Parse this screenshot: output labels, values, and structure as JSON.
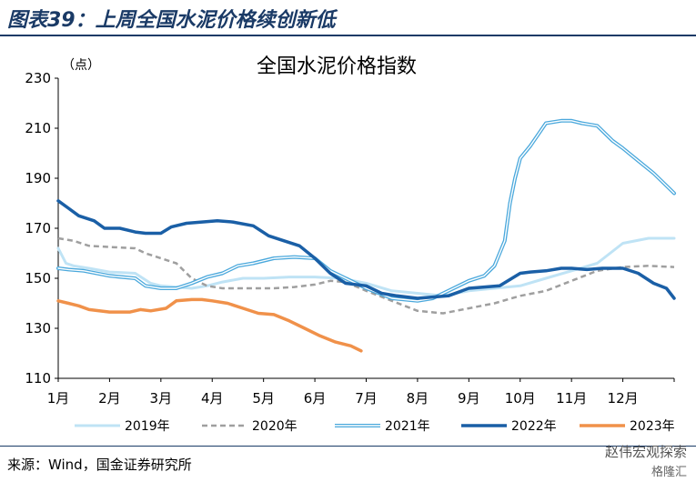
{
  "header": {
    "figure_title": "图表39：上周全国水泥价格续创新低"
  },
  "footer": {
    "source": "来源：Wind，国金证券研究所",
    "watermark": "赵伟宏观探索",
    "watermark2": "格隆汇"
  },
  "chart_data": {
    "type": "line",
    "title": "全国水泥价格指数",
    "unit_label": "（点）",
    "ylim": [
      110,
      230
    ],
    "yticks": [
      110,
      130,
      150,
      170,
      190,
      210,
      230
    ],
    "xlim": [
      0,
      12
    ],
    "xticks": [
      {
        "x": 0,
        "label": "1月"
      },
      {
        "x": 1,
        "label": "2月"
      },
      {
        "x": 2,
        "label": "3月"
      },
      {
        "x": 3,
        "label": "4月"
      },
      {
        "x": 4,
        "label": "5月"
      },
      {
        "x": 5,
        "label": "6月"
      },
      {
        "x": 6,
        "label": "7月"
      },
      {
        "x": 7,
        "label": "8月"
      },
      {
        "x": 8,
        "label": "9月"
      },
      {
        "x": 9,
        "label": "10月"
      },
      {
        "x": 10,
        "label": "11月"
      },
      {
        "x": 11,
        "label": "12月"
      }
    ],
    "grid": false,
    "legend_position": "bottom",
    "series": [
      {
        "name": "2019年",
        "color": "#bfe3f5",
        "style": "solid",
        "double": false,
        "width": 3,
        "x": [
          0,
          0.15,
          0.3,
          0.6,
          1.0,
          1.5,
          1.8,
          2.0,
          2.3,
          2.6,
          2.9,
          3.2,
          3.6,
          4.0,
          4.5,
          5.0,
          5.5,
          6.0,
          6.5,
          7.0,
          7.5,
          8.0,
          8.5,
          9.0,
          9.5,
          10.0,
          10.5,
          11.0,
          11.5,
          12.0
        ],
        "y": [
          162,
          156,
          155,
          154,
          152.5,
          152,
          148,
          147,
          146.5,
          146,
          147,
          148.5,
          150,
          150,
          150.5,
          150.5,
          150,
          148,
          145,
          144,
          143,
          145,
          146,
          147,
          150,
          153,
          156,
          164,
          166,
          166
        ]
      },
      {
        "name": "2020年",
        "color": "#9f9f9f",
        "style": "dashed",
        "double": false,
        "width": 2.5,
        "x": [
          0,
          0.3,
          0.6,
          1.0,
          1.5,
          1.7,
          2.0,
          2.3,
          2.6,
          2.9,
          3.2,
          3.5,
          3.8,
          4.2,
          4.6,
          5.0,
          5.3,
          5.6,
          6.0,
          6.5,
          7.0,
          7.5,
          8.0,
          8.5,
          9.0,
          9.5,
          10.0,
          10.5,
          11.0,
          11.5,
          12.0
        ],
        "y": [
          166,
          165,
          163,
          162.5,
          162,
          160,
          158,
          156,
          150,
          147,
          146,
          146,
          146,
          146,
          146.5,
          147.5,
          149,
          148.5,
          145,
          141,
          137,
          136,
          138,
          140,
          143,
          145,
          149,
          153,
          154.5,
          155,
          154.5
        ]
      },
      {
        "name": "2021年",
        "color": "#4aa8dc",
        "style": "solid",
        "double": true,
        "width": 4,
        "x": [
          0,
          0.2,
          0.5,
          1.0,
          1.5,
          1.7,
          2.0,
          2.3,
          2.6,
          2.9,
          3.2,
          3.5,
          3.8,
          4.2,
          4.6,
          5.0,
          5.3,
          5.6,
          6.0,
          6.5,
          7.0,
          7.3,
          7.6,
          8.0,
          8.3,
          8.5,
          8.7,
          8.8,
          8.9,
          9.0,
          9.2,
          9.5,
          9.8,
          10.0,
          10.2,
          10.5,
          10.8,
          11.0,
          11.3,
          11.6,
          11.8,
          12.0
        ],
        "y": [
          154,
          153.5,
          153,
          151,
          150,
          147,
          146,
          146,
          148,
          150.5,
          152,
          155,
          156,
          158,
          158.5,
          158,
          153,
          150,
          146,
          142,
          141,
          142,
          145,
          149,
          151,
          155,
          165,
          180,
          190,
          198,
          203,
          212,
          213,
          213,
          212,
          211,
          205,
          202,
          197,
          192,
          188,
          184
        ]
      },
      {
        "name": "2022年",
        "color": "#1a5fa6",
        "style": "solid",
        "double": false,
        "width": 3.5,
        "x": [
          0,
          0.2,
          0.4,
          0.7,
          0.9,
          1.2,
          1.5,
          1.7,
          2.0,
          2.2,
          2.5,
          2.8,
          3.1,
          3.4,
          3.8,
          4.1,
          4.4,
          4.7,
          5.0,
          5.3,
          5.6,
          6.0,
          6.3,
          6.6,
          7.0,
          7.3,
          7.6,
          8.0,
          8.3,
          8.6,
          9.0,
          9.2,
          9.5,
          9.8,
          10.0,
          10.3,
          10.6,
          11.0,
          11.3,
          11.6,
          11.85,
          12.0
        ],
        "y": [
          181,
          178,
          175,
          173,
          170,
          170,
          168.5,
          168,
          168,
          170.5,
          172,
          172.5,
          173,
          172.5,
          171,
          167,
          165,
          163,
          158,
          152,
          148,
          147,
          144,
          143,
          142,
          142.5,
          143,
          146,
          146.5,
          147,
          152,
          152.5,
          153,
          154,
          154,
          153.5,
          154,
          154,
          152,
          148,
          146,
          142
        ]
      },
      {
        "name": "2023年",
        "color": "#f0914a",
        "style": "solid",
        "double": false,
        "width": 3.5,
        "x": [
          0,
          0.2,
          0.4,
          0.6,
          1.0,
          1.4,
          1.6,
          1.8,
          2.1,
          2.3,
          2.6,
          2.8,
          3.0,
          3.3,
          3.6,
          3.9,
          4.2,
          4.5,
          4.8,
          5.1,
          5.4,
          5.7,
          5.9
        ],
        "y": [
          141,
          140,
          139,
          137.5,
          136.5,
          136.5,
          137.5,
          137,
          138,
          141,
          141.5,
          141.5,
          141,
          140,
          138,
          136,
          135.5,
          133,
          130,
          127,
          124.5,
          123,
          121
        ]
      }
    ]
  }
}
